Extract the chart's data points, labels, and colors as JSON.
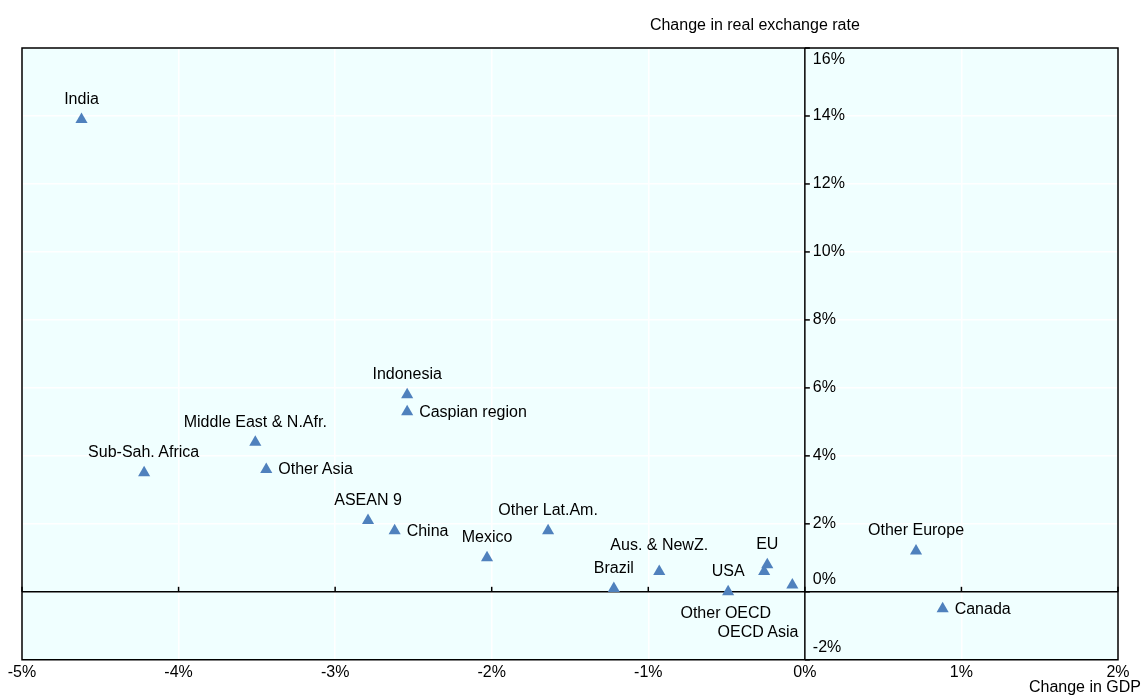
{
  "chart_data": {
    "type": "scatter",
    "xlabel": "Change in GDP",
    "ylabel": "Change in real exchange rate",
    "x": [
      -4.62,
      -4.22,
      -3.51,
      -3.44,
      -2.54,
      -2.54,
      -2.79,
      -2.62,
      -2.03,
      -1.64,
      -1.22,
      -0.93,
      -0.49,
      -0.26,
      -0.24,
      -0.08,
      0.71,
      0.88
    ],
    "series": [
      {
        "color": "#4f81bd",
        "values": [
          13.9,
          3.5,
          4.4,
          3.6,
          5.8,
          5.3,
          2.1,
          1.8,
          1.0,
          1.8,
          0.1,
          0.6,
          0.0,
          0.6,
          0.8,
          0.2,
          1.2,
          -0.5
        ]
      }
    ],
    "annotations": [
      {
        "text": "India",
        "x": -4.62,
        "y": 13.9
      },
      {
        "text": "Sub-Sah. Africa",
        "x": -4.22,
        "y": 3.5
      },
      {
        "text": "Middle East & N.Afr.",
        "x": -3.51,
        "y": 4.4
      },
      {
        "text": "Other Asia",
        "x": -3.44,
        "y": 3.6
      },
      {
        "text": "Indonesia",
        "x": -2.54,
        "y": 5.8
      },
      {
        "text": "Caspian region",
        "x": -2.54,
        "y": 5.3
      },
      {
        "text": "ASEAN 9",
        "x": -2.79,
        "y": 2.1
      },
      {
        "text": "China",
        "x": -2.62,
        "y": 1.8
      },
      {
        "text": "Mexico",
        "x": -2.03,
        "y": 1.0
      },
      {
        "text": "Other Lat.Am.",
        "x": -1.64,
        "y": 1.8
      },
      {
        "text": "Brazil",
        "x": -1.22,
        "y": 0.1
      },
      {
        "text": "Aus. & NewZ.",
        "x": -0.93,
        "y": 0.6
      },
      {
        "text": "USA",
        "x": -0.49,
        "y": 0.0
      },
      {
        "text": "Other OECD",
        "x": -0.26,
        "y": 0.6
      },
      {
        "text": "EU",
        "x": -0.24,
        "y": 0.8
      },
      {
        "text": "OECD Asia",
        "x": -0.08,
        "y": 0.2
      },
      {
        "text": "Other Europe",
        "x": 0.71,
        "y": 1.2
      },
      {
        "text": "Canada",
        "x": 0.88,
        "y": -0.5
      }
    ],
    "xlim": [
      -5,
      2
    ],
    "xticks": [
      {
        "value": -5,
        "label": "-5%"
      },
      {
        "value": -4,
        "label": "-4%"
      },
      {
        "value": -3,
        "label": "-3%"
      },
      {
        "value": -2,
        "label": "-2%"
      },
      {
        "value": -1,
        "label": "-1%"
      },
      {
        "value": 0,
        "label": "0%"
      },
      {
        "value": 1,
        "label": "1%"
      },
      {
        "value": 2,
        "label": "2%"
      }
    ],
    "ylim": [
      -2,
      16
    ],
    "yticks": [
      {
        "value": -2,
        "label": "-2%"
      },
      {
        "value": 0,
        "label": "0%"
      },
      {
        "value": 2,
        "label": "2%"
      },
      {
        "value": 4,
        "label": "4%"
      },
      {
        "value": 6,
        "label": "6%"
      },
      {
        "value": 8,
        "label": "8%"
      },
      {
        "value": 10,
        "label": "10%"
      },
      {
        "value": 12,
        "label": "12%"
      },
      {
        "value": 14,
        "label": "14%"
      },
      {
        "value": 16,
        "label": "16%"
      }
    ],
    "grid": true,
    "legend": false,
    "marker": "triangle"
  }
}
